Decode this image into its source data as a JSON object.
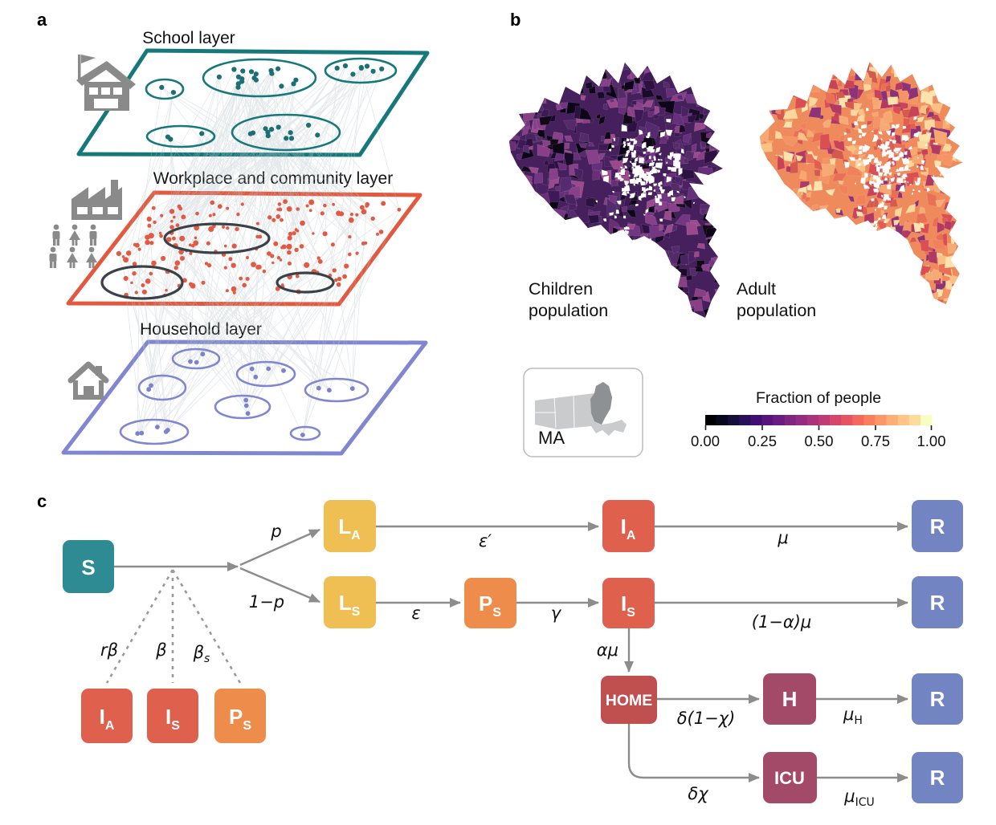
{
  "panel_a": {
    "label": "a",
    "titles": {
      "school": "School layer",
      "workplace": "Workplace and community layer",
      "household": "Household layer"
    },
    "colors": {
      "school_outline": "#17787c",
      "school_dot": "#1c6f74",
      "workplace_outline": "#e2593f",
      "workplace_dot": "#e25a43",
      "workplace_group_outline": "#3a4248",
      "household_outline": "#8087d0",
      "household_dot": "#7b83ce",
      "link_line": "#b6c3c9",
      "icon_gray": "#8a8a8a"
    }
  },
  "panel_b": {
    "label": "b",
    "maps": [
      {
        "name": "children",
        "label_line1": "Children",
        "label_line2": "population",
        "base_color": "#46205c",
        "palette": [
          "#1b0b2a",
          "#2d1143",
          "#3d1a55",
          "#4a2263",
          "#562a6f",
          "#652f7a",
          "#733682",
          "#874089",
          "#9a4a8c",
          "#542a68",
          "#6b2d78",
          "#120818",
          "#0d0618",
          "#893f86"
        ]
      },
      {
        "name": "adult",
        "label_line1": "Adult",
        "label_line2": "population",
        "base_color": "#ef8a5c",
        "palette": [
          "#c74458",
          "#d94f52",
          "#e25d50",
          "#ea7055",
          "#f0815b",
          "#f49465",
          "#f7a770",
          "#fbc184",
          "#fdd79b",
          "#b23a62",
          "#f6ab74",
          "#8c3277",
          "#fce3ab",
          "#d55a4e"
        ]
      }
    ],
    "inset": {
      "label": "MA",
      "state_fill": "#c9cbcd",
      "metro_fill": "#8e9194",
      "border": "#b9bcbe"
    },
    "colorbar": {
      "title": "Fraction of people",
      "tick_labels": [
        "0.00",
        "0.25",
        "0.50",
        "0.75",
        "1.00"
      ],
      "palette": [
        "#000004",
        "#07071d",
        "#160f3b",
        "#29115a",
        "#400f73",
        "#56147d",
        "#6a1c81",
        "#802582",
        "#952c80",
        "#ab337c",
        "#c03a76",
        "#d6456c",
        "#e85362",
        "#f4675c",
        "#fa7d5e",
        "#fd9668",
        "#feae77",
        "#fec488",
        "#fcdb9c",
        "#fbfcbf"
      ]
    }
  },
  "panel_c": {
    "label": "c",
    "nodes": [
      {
        "id": "S",
        "label": "S",
        "sub": "",
        "color": "#2e8b94"
      },
      {
        "id": "LA",
        "label": "L",
        "sub": "A",
        "color": "#f0bf53"
      },
      {
        "id": "LS",
        "label": "L",
        "sub": "S",
        "color": "#f0bf53"
      },
      {
        "id": "PS",
        "label": "P",
        "sub": "S",
        "color": "#ee8d4b"
      },
      {
        "id": "IA",
        "label": "I",
        "sub": "A",
        "color": "#e0604e"
      },
      {
        "id": "IS",
        "label": "I",
        "sub": "S",
        "color": "#e0604e"
      },
      {
        "id": "R1",
        "label": "R",
        "sub": "",
        "color": "#7285c2"
      },
      {
        "id": "R2",
        "label": "R",
        "sub": "",
        "color": "#7285c2"
      },
      {
        "id": "HOME",
        "label": "HOME",
        "sub": "",
        "color": "#c05050"
      },
      {
        "id": "H",
        "label": "H",
        "sub": "",
        "color": "#a34a68"
      },
      {
        "id": "ICU",
        "label": "ICU",
        "sub": "",
        "color": "#a34a68"
      },
      {
        "id": "R3",
        "label": "R",
        "sub": "",
        "color": "#7285c2"
      },
      {
        "id": "R4",
        "label": "R",
        "sub": "",
        "color": "#7285c2"
      },
      {
        "id": "IA_contact",
        "label": "I",
        "sub": "A",
        "color": "#e0604e"
      },
      {
        "id": "IS_contact",
        "label": "I",
        "sub": "S",
        "color": "#e0604e"
      },
      {
        "id": "PS_contact",
        "label": "P",
        "sub": "S",
        "color": "#ee8d4b"
      }
    ],
    "edge_labels": {
      "p": "p",
      "one_minus_p": "1−p",
      "epsilon_prime": "ε′",
      "mu": "μ",
      "epsilon": "ε",
      "gamma": "γ",
      "one_minus_alpha_mu": "(1−α)μ",
      "alpha_mu": "αμ",
      "delta_one_minus_chi": "δ(1−χ)",
      "mu_H_main": "μ",
      "mu_H_sub": "H",
      "delta_chi": "δχ",
      "mu_ICU_main": "μ",
      "mu_ICU_sub": "ICU",
      "r_beta": "rβ",
      "beta": "β",
      "beta_s_main": "β",
      "beta_s_sub": "s"
    }
  }
}
